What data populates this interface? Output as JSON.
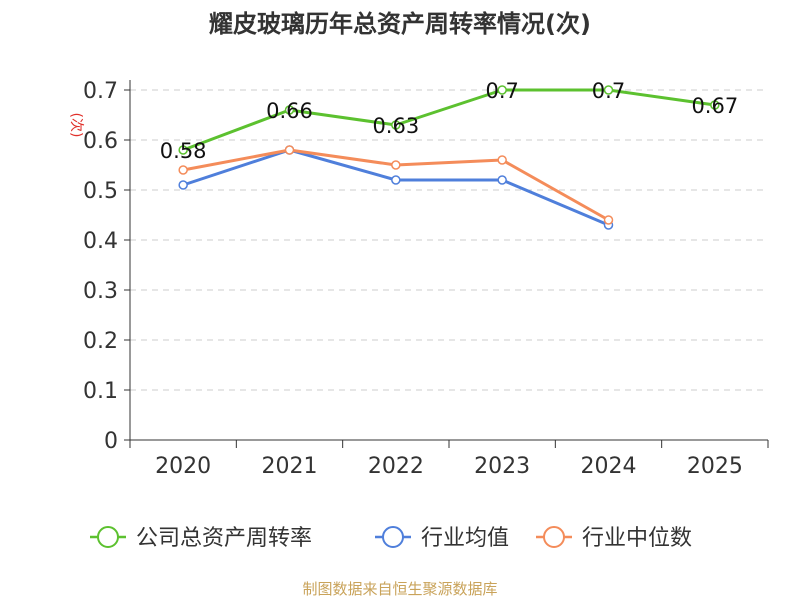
{
  "chart_data": {
    "type": "line",
    "title": "耀皮玻璃历年总资产周转率情况(次)",
    "ylabel": "(次)",
    "xlabel": "",
    "categories": [
      "2020",
      "2021",
      "2022",
      "2023",
      "2024",
      "2025"
    ],
    "ylim": [
      0,
      0.7
    ],
    "yticks": [
      0,
      0.1,
      0.2,
      0.3,
      0.4,
      0.5,
      0.6,
      0.7
    ],
    "ytick_labels": [
      "0",
      "0.1",
      "0.2",
      "0.3",
      "0.4",
      "0.5",
      "0.6",
      "0.7"
    ],
    "grid": true,
    "legend_position": "bottom",
    "series": [
      {
        "name": "公司总资产周转率",
        "color": "#5cc12f",
        "values": [
          0.58,
          0.66,
          0.63,
          0.7,
          0.7,
          0.67
        ],
        "labels": [
          "0.58",
          "0.66",
          "0.63",
          "0.7",
          "0.7",
          "0.67"
        ],
        "show_labels": true
      },
      {
        "name": "行业均值",
        "color": "#4f7fdb",
        "values": [
          0.51,
          0.58,
          0.52,
          0.52,
          0.43,
          null
        ],
        "show_labels": false
      },
      {
        "name": "行业中位数",
        "color": "#f48c5a",
        "values": [
          0.54,
          0.58,
          0.55,
          0.56,
          0.44,
          null
        ],
        "show_labels": false
      }
    ],
    "source_note": "制图数据来自恒生聚源数据库"
  }
}
